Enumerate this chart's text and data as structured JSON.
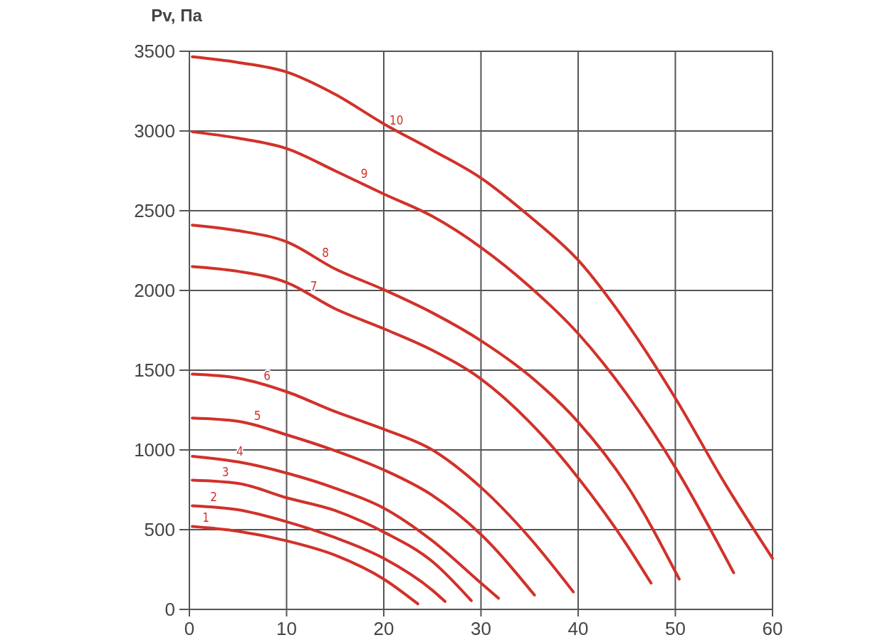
{
  "chart_data": {
    "type": "line",
    "ylabel": "Pv, Па",
    "xlim": [
      0,
      60
    ],
    "xticks": [
      0,
      10,
      20,
      30,
      40,
      50,
      60
    ],
    "ylim": [
      0,
      3500
    ],
    "yticks": [
      0,
      500,
      1000,
      1500,
      2000,
      2500,
      3000,
      3500
    ],
    "grid": true,
    "marker": "none",
    "line_style": "solid",
    "series": [
      {
        "name": "1",
        "color": "#d1312a",
        "x": [
          0.3,
          5,
          10,
          15,
          20,
          23.5
        ],
        "values": [
          520,
          490,
          430,
          340,
          190,
          35
        ]
      },
      {
        "name": "2",
        "color": "#d1312a",
        "x": [
          0.3,
          5,
          10,
          15,
          20,
          25,
          26.3
        ],
        "values": [
          650,
          625,
          550,
          450,
          320,
          120,
          50
        ]
      },
      {
        "name": "3",
        "color": "#d1312a",
        "x": [
          0.3,
          5,
          10,
          15,
          20,
          25,
          29
        ],
        "values": [
          810,
          790,
          700,
          620,
          485,
          300,
          55
        ]
      },
      {
        "name": "4",
        "color": "#d1312a",
        "x": [
          0.3,
          5,
          10,
          15,
          20,
          25,
          30,
          31.8
        ],
        "values": [
          960,
          925,
          855,
          760,
          635,
          430,
          165,
          70
        ]
      },
      {
        "name": "5",
        "color": "#d1312a",
        "x": [
          0.3,
          5,
          10,
          15,
          20,
          25,
          30,
          35.5
        ],
        "values": [
          1200,
          1180,
          1095,
          995,
          875,
          715,
          470,
          90
        ]
      },
      {
        "name": "6",
        "color": "#d1312a",
        "x": [
          0.3,
          5,
          10,
          15,
          20,
          25,
          30,
          35,
          39.5
        ],
        "values": [
          1475,
          1450,
          1365,
          1240,
          1130,
          1000,
          765,
          450,
          110
        ]
      },
      {
        "name": "7",
        "color": "#d1312a",
        "x": [
          0.3,
          5,
          10,
          15,
          20,
          25,
          30,
          35,
          40,
          45,
          47.5
        ],
        "values": [
          2150,
          2120,
          2050,
          1885,
          1760,
          1625,
          1445,
          1175,
          825,
          405,
          165
        ]
      },
      {
        "name": "8",
        "color": "#d1312a",
        "x": [
          0.3,
          5,
          10,
          15,
          20,
          25,
          30,
          35,
          40,
          45,
          50.4
        ],
        "values": [
          2410,
          2375,
          2305,
          2135,
          2005,
          1860,
          1685,
          1465,
          1175,
          780,
          190
        ]
      },
      {
        "name": "9",
        "color": "#d1312a",
        "x": [
          0.3,
          5,
          10,
          15,
          20,
          25,
          30,
          35,
          40,
          45,
          50,
          56
        ],
        "values": [
          2995,
          2955,
          2890,
          2750,
          2605,
          2465,
          2270,
          2025,
          1730,
          1350,
          890,
          230
        ]
      },
      {
        "name": "10",
        "color": "#d1312a",
        "x": [
          0.3,
          5,
          10,
          15,
          20,
          25,
          30,
          35,
          40,
          45,
          50,
          55,
          60
        ],
        "values": [
          3465,
          3430,
          3370,
          3230,
          3045,
          2880,
          2705,
          2465,
          2190,
          1795,
          1325,
          800,
          320
        ]
      }
    ]
  }
}
